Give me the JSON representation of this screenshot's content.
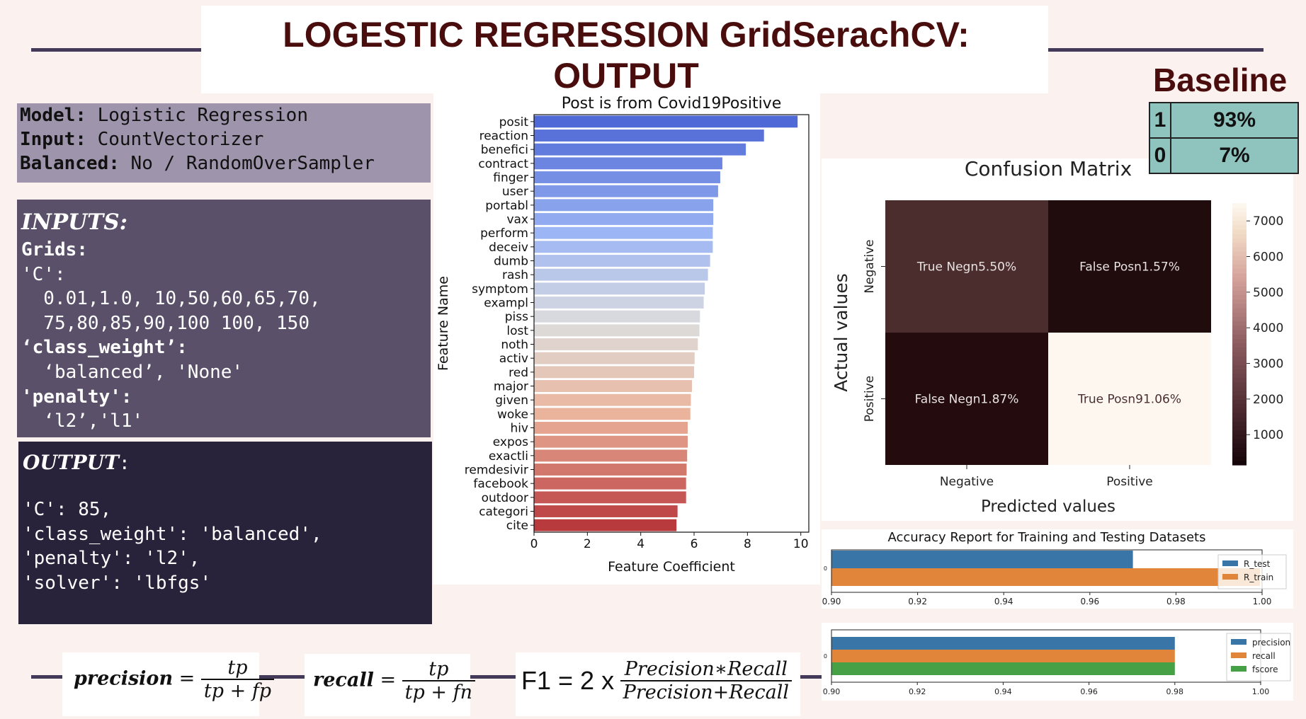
{
  "title": "LOGESTIC REGRESSION GridSerachCV: OUTPUT",
  "model_panel": {
    "model_key": "Model:",
    "model_val": "Logistic Regression",
    "input_key": "Input:",
    "input_val": "CountVectorizer",
    "balanced_key": "Balanced:",
    "balanced_val": "No / RandomOverSampler"
  },
  "inputs_panel": {
    "heading": "INPUTS:",
    "grids": "Grids:",
    "c_key": "'C':",
    "c_line1": "  0.01,1.0, 10,50,60,65,70,",
    "c_line2": "  75,80,85,90,100 100, 150",
    "cw_key": "‘class_weight’:",
    "cw_val": "  ‘balanced’, 'None'",
    "pen_key": "'penalty':",
    "pen_val": "  ‘l2’,'l1'"
  },
  "output_panel": {
    "heading": "OUTPUT",
    "colon": ":",
    "lines": [
      "'C': 85,",
      "'class_weight': 'balanced',",
      "'penalty': 'l2',",
      "'solver': 'lbfgs'"
    ]
  },
  "baseline": {
    "title": "Baseline",
    "rows": [
      {
        "label": "1",
        "value": "93%"
      },
      {
        "label": "0",
        "value": "7%"
      }
    ]
  },
  "formulas": {
    "precision": {
      "lhs": "precision",
      "eq": "=",
      "num": "tp",
      "den": "tp + fp"
    },
    "recall": {
      "lhs": "recall",
      "eq": "=",
      "num": "tp",
      "den": "tp + fn"
    },
    "f1": {
      "lhs": "F1 = 2 x",
      "num": "Precision∗Recall",
      "den": "Precision+Recall"
    }
  },
  "chart_data": [
    {
      "type": "bar",
      "orientation": "horizontal",
      "title": "Post is from Covid19Positive",
      "xlabel": "Feature Coefficient",
      "ylabel": "Feature Name",
      "xlim": [
        0,
        10.3
      ],
      "xticks": [
        "0",
        "2",
        "4",
        "6",
        "8",
        "10"
      ],
      "categories": [
        "posit",
        "reaction",
        "benefici",
        "contract",
        "finger",
        "user",
        "portabl",
        "vax",
        "perform",
        "deceiv",
        "dumb",
        "rash",
        "symptom",
        "exampl",
        "piss",
        "lost",
        "noth",
        "activ",
        "red",
        "major",
        "given",
        "woke",
        "hiv",
        "expos",
        "exactli",
        "remdesivir",
        "facebook",
        "outdoor",
        "categori",
        "cite"
      ],
      "values": [
        9.88,
        8.62,
        7.94,
        7.06,
        6.98,
        6.9,
        6.72,
        6.72,
        6.7,
        6.7,
        6.6,
        6.52,
        6.4,
        6.36,
        6.22,
        6.2,
        6.14,
        6.02,
        6.0,
        5.92,
        5.88,
        5.86,
        5.76,
        5.76,
        5.74,
        5.72,
        5.7,
        5.7,
        5.38,
        5.34
      ],
      "palette": "coolwarm (blue to red)"
    },
    {
      "type": "heatmap",
      "title": "Confusion Matrix",
      "xlabel": "Predicted values",
      "ylabel": "Actual values",
      "x_categories": [
        "Negative",
        "Positive"
      ],
      "y_categories": [
        "Negative",
        "Positive"
      ],
      "annotations": [
        [
          "True Negn5.50%",
          "False Posn1.57%"
        ],
        [
          "False Negn1.87%",
          "True Posn91.06%"
        ]
      ],
      "percent": [
        [
          5.5,
          1.57
        ],
        [
          1.87,
          91.06
        ]
      ],
      "colorbar_ticks": [
        "1000",
        "2000",
        "3000",
        "4000",
        "5000",
        "6000",
        "7000"
      ],
      "colorbar_range": [
        150,
        7500
      ],
      "cell_colors": [
        [
          "#4b2d2d",
          "#200b0d"
        ],
        [
          "#240c0e",
          "#fdf7f0"
        ]
      ]
    },
    {
      "type": "bar",
      "orientation": "horizontal",
      "title": "Accuracy Report for Training and Testing Datasets",
      "ytick": "0",
      "xlim": [
        0.9,
        1.0
      ],
      "xticks": [
        "0.90",
        "0.92",
        "0.94",
        "0.96",
        "0.98",
        "1.00"
      ],
      "series": [
        {
          "name": "R_test",
          "value": 0.97,
          "color": "#3a75a7"
        },
        {
          "name": "R_train",
          "value": 0.9995,
          "color": "#e1853a"
        }
      ],
      "legend": "right"
    },
    {
      "type": "bar",
      "orientation": "horizontal",
      "ytick": "0",
      "xlim": [
        0.9,
        1.0
      ],
      "xticks": [
        "0.90",
        "0.92",
        "0.94",
        "0.96",
        "0.98",
        "1.00"
      ],
      "series": [
        {
          "name": "precision",
          "value": 0.98,
          "color": "#3a75a7"
        },
        {
          "name": "recall",
          "value": 0.98,
          "color": "#e1853a"
        },
        {
          "name": "fscore",
          "value": 0.98,
          "color": "#45a046"
        }
      ],
      "legend": "right"
    }
  ]
}
